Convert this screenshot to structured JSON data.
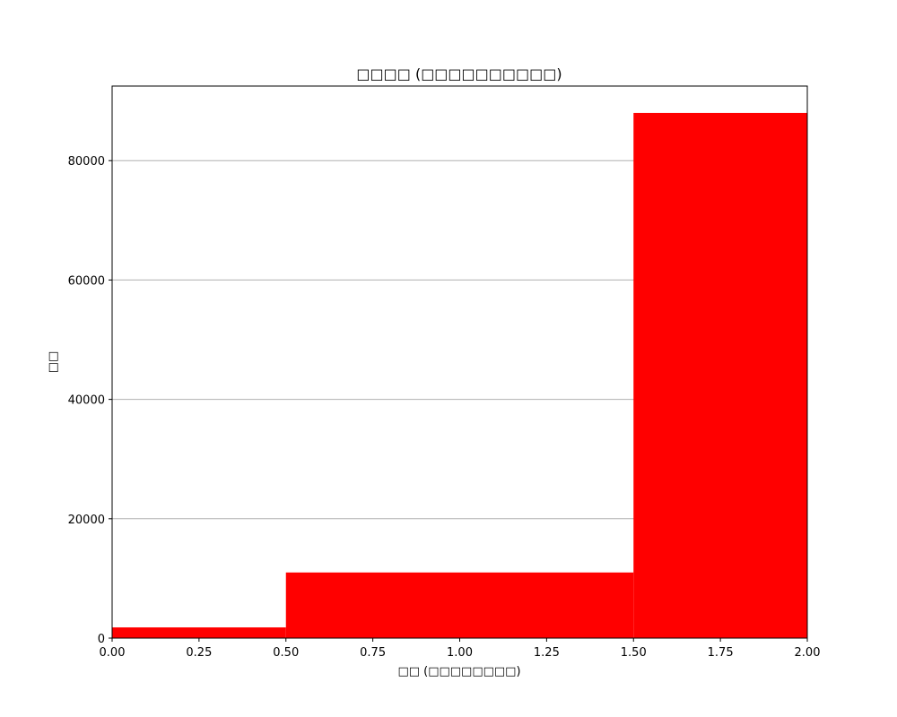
{
  "chart_data": {
    "type": "bar",
    "title": "□□□□ (□□□□□□□□□□)",
    "xlabel": "□□ (□□□□□□□□)",
    "ylabel": "□□",
    "bins": [
      {
        "x0": 0.0,
        "x1": 0.5,
        "value": 1800
      },
      {
        "x0": 0.5,
        "x1": 1.5,
        "value": 11000
      },
      {
        "x0": 1.5,
        "x1": 2.0,
        "value": 88000
      }
    ],
    "xlim": [
      0,
      2
    ],
    "ylim": [
      0,
      92500
    ],
    "xticks": [
      0.0,
      0.25,
      0.5,
      0.75,
      1.0,
      1.25,
      1.5,
      1.75,
      2.0
    ],
    "xtick_labels": [
      "0.00",
      "0.25",
      "0.50",
      "0.75",
      "1.00",
      "1.25",
      "1.50",
      "1.75",
      "2.00"
    ],
    "yticks": [
      0,
      20000,
      40000,
      60000,
      80000
    ],
    "ytick_labels": [
      "0",
      "20000",
      "40000",
      "60000",
      "80000"
    ],
    "grid": "y-axis only",
    "bar_color": "#ff0000",
    "grid_color": "#b0b0b0"
  }
}
